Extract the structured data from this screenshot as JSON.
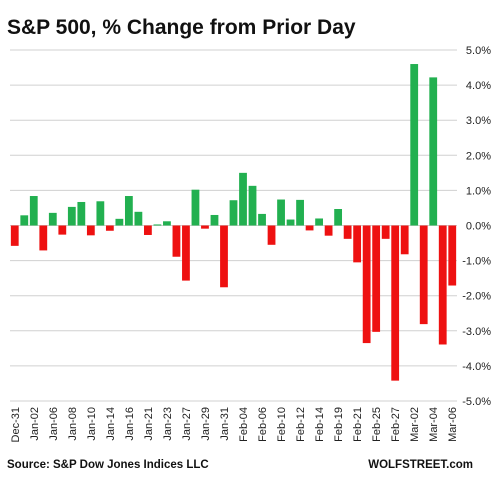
{
  "chart_data": {
    "type": "bar",
    "title": "S&P 500, % Change from Prior Day",
    "source": "Source: S&P Dow Jones Indices LLC",
    "brand": "WOLFSTREET.com",
    "xlabel": "",
    "ylabel": "",
    "ylim": [
      -5,
      5
    ],
    "yticks": [
      "5.0%",
      "4.0%",
      "3.0%",
      "2.0%",
      "1.0%",
      "0.0%",
      "-1.0%",
      "-2.0%",
      "-3.0%",
      "-4.0%",
      "-5.0%"
    ],
    "grid": true,
    "legend": "none",
    "colors": {
      "positive": "#22b050",
      "negative": "#ee1111",
      "grid": "#d0d0d0"
    },
    "category_labels": [
      "Dec-31",
      "Jan-02",
      "Jan-06",
      "Jan-08",
      "Jan-10",
      "Jan-14",
      "Jan-16",
      "Jan-21",
      "Jan-23",
      "Jan-27",
      "Jan-29",
      "Jan-31",
      "Feb-04",
      "Feb-06",
      "Feb-10",
      "Feb-12",
      "Feb-14",
      "Feb-19",
      "Feb-21",
      "Feb-25",
      "Feb-27",
      "Mar-02",
      "Mar-04",
      "Mar-06"
    ],
    "values": [
      -0.58,
      0.29,
      0.84,
      -0.71,
      0.36,
      -0.26,
      0.53,
      0.67,
      -0.28,
      0.69,
      -0.15,
      0.19,
      0.84,
      0.39,
      -0.27,
      0.03,
      0.12,
      -0.89,
      -1.57,
      1.02,
      -0.09,
      0.3,
      -1.76,
      0.72,
      1.5,
      1.13,
      0.33,
      -0.55,
      0.74,
      0.17,
      0.73,
      -0.14,
      0.2,
      -0.29,
      0.47,
      -0.38,
      -1.05,
      -3.35,
      -3.03,
      -0.38,
      -4.42,
      -0.82,
      4.6,
      -2.81,
      4.22,
      -3.39,
      -1.71
    ]
  }
}
